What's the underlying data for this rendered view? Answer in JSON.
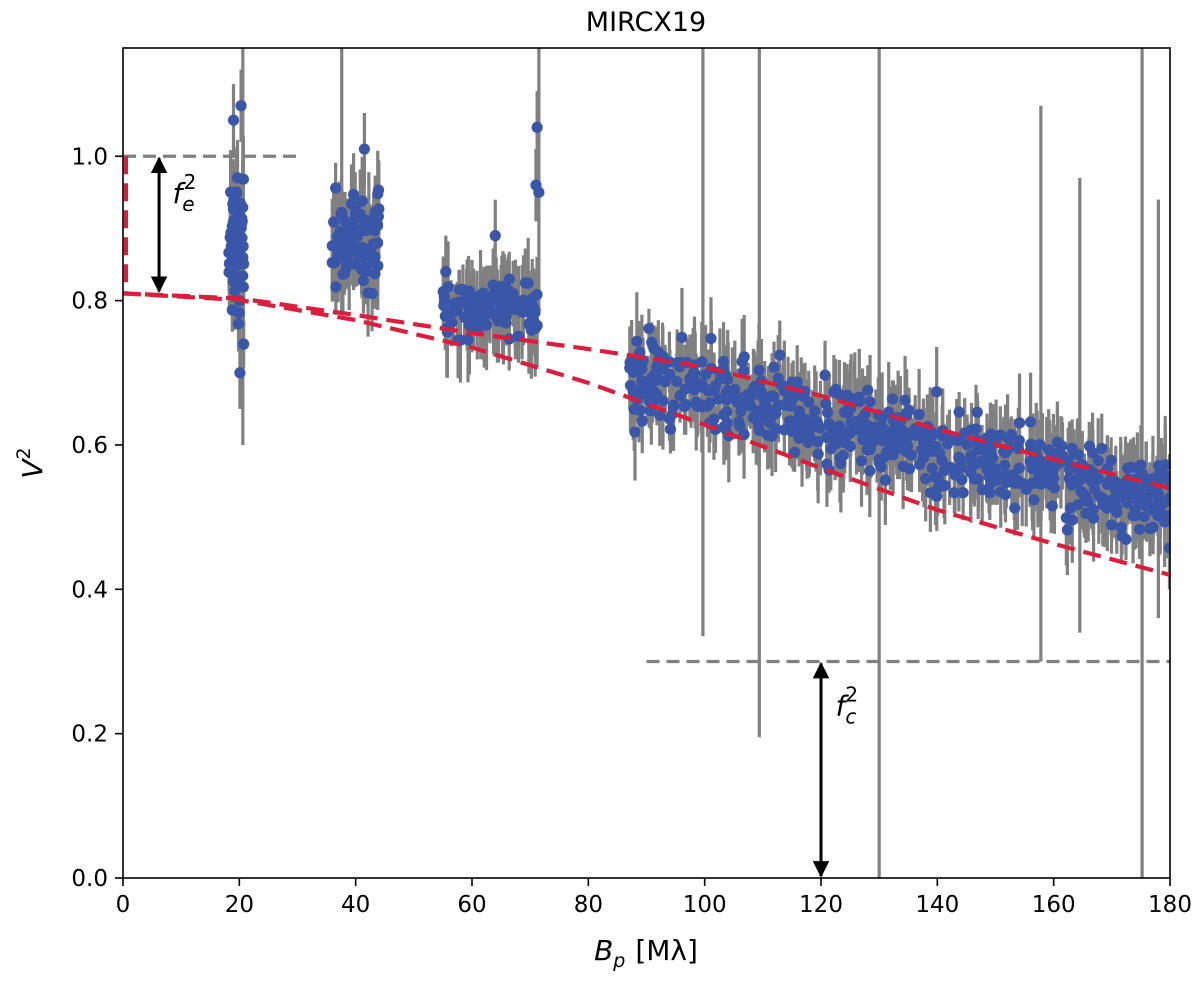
{
  "chart_data": {
    "type": "scatter",
    "title": "MIRCX19",
    "xlabel_main": "B",
    "xlabel_sub": "p",
    "xlabel_unit": "[Mλ]",
    "ylabel_main": "V",
    "ylabel_sup": "2",
    "xlim": [
      0,
      180
    ],
    "ylim": [
      0,
      1.15
    ],
    "xticks": [
      0,
      20,
      40,
      60,
      80,
      100,
      120,
      140,
      160,
      180
    ],
    "xtick_labels": [
      "0",
      "20",
      "40",
      "60",
      "80",
      "100",
      "120",
      "140",
      "160",
      "180"
    ],
    "yticks": [
      0,
      0.2,
      0.4,
      0.6,
      0.8,
      1.0
    ],
    "ytick_labels": [
      "0.0",
      "0.2",
      "0.4",
      "0.6",
      "0.8",
      "1.0"
    ],
    "grid": false,
    "colors": {
      "points": "#3a56a8",
      "errorbars": "#808080",
      "model": "#dc1e3c",
      "reference": "#808080",
      "arrows": "#000000"
    },
    "clusters": [
      {
        "x_range": [
          18.2,
          20.8
        ],
        "y_center": 0.88,
        "y_spread": 0.09,
        "count": 70
      },
      {
        "x_range": [
          35.8,
          44.0
        ],
        "y_center": 0.88,
        "y_spread": 0.06,
        "count": 95
      },
      {
        "x_range": [
          55.0,
          71.5
        ],
        "y_center": 0.79,
        "y_spread": 0.04,
        "count": 110
      },
      {
        "x_range": [
          87.0,
          180.0
        ],
        "y_center_start": 0.7,
        "y_center_end": 0.52,
        "y_spread": 0.055,
        "count": 620
      }
    ],
    "highlight_points": [
      {
        "x": 20.3,
        "y": 1.07
      },
      {
        "x": 19.0,
        "y": 1.05
      },
      {
        "x": 20.1,
        "y": 0.7
      },
      {
        "x": 41.5,
        "y": 1.01
      },
      {
        "x": 71.2,
        "y": 1.04
      },
      {
        "x": 71.0,
        "y": 0.96
      },
      {
        "x": 64.0,
        "y": 0.89
      },
      {
        "x": 55.5,
        "y": 0.84
      }
    ],
    "long_errorbars": [
      {
        "x": 99.7,
        "y": 0.68,
        "y_low": 0.335,
        "y_high": 1.15
      },
      {
        "x": 109.4,
        "y": 0.62,
        "y_low": 0.195,
        "y_high": 1.15
      },
      {
        "x": 130.0,
        "y": 0.58,
        "y_low": 0.0,
        "y_high": 1.15
      },
      {
        "x": 157.8,
        "y": 0.55,
        "y_low": 0.3,
        "y_high": 1.07
      },
      {
        "x": 175.2,
        "y": 0.56,
        "y_low": 0.0,
        "y_high": 1.15
      },
      {
        "x": 37.6,
        "y": 0.92,
        "y_low": 0.78,
        "y_high": 1.15
      },
      {
        "x": 20.6,
        "y": 0.86,
        "y_low": 0.6,
        "y_high": 1.15
      },
      {
        "x": 71.5,
        "y": 0.95,
        "y_low": 0.78,
        "y_high": 1.15
      },
      {
        "x": 164.5,
        "y": 0.56,
        "y_low": 0.34,
        "y_high": 0.97
      },
      {
        "x": 178.0,
        "y": 0.55,
        "y_low": 0.36,
        "y_high": 0.94
      }
    ],
    "model_curves": [
      {
        "name": "",
        "points": [
          [
            0.5,
            1.0
          ],
          [
            0.5,
            0.81
          ],
          [
            0,
            0.81
          ],
          [
            20,
            0.803
          ],
          [
            40,
            0.78
          ],
          [
            60,
            0.755
          ],
          [
            80,
            0.733
          ],
          [
            100,
            0.708
          ],
          [
            120,
            0.668
          ],
          [
            140,
            0.622
          ],
          [
            160,
            0.58
          ],
          [
            180,
            0.54
          ]
        ]
      },
      {
        "name": "",
        "points": [
          [
            0,
            0.81
          ],
          [
            20,
            0.801
          ],
          [
            40,
            0.773
          ],
          [
            60,
            0.735
          ],
          [
            80,
            0.686
          ],
          [
            100,
            0.628
          ],
          [
            120,
            0.568
          ],
          [
            140,
            0.51
          ],
          [
            160,
            0.463
          ],
          [
            180,
            0.42
          ]
        ]
      }
    ],
    "reference_lines": [
      {
        "y": 1.0,
        "x_start": 0,
        "x_end": 30
      },
      {
        "y": 0.3,
        "x_start": 90,
        "x_end": 180
      }
    ],
    "annotations": [
      {
        "label_main": "f",
        "label_sub": "e",
        "label_sup": "2",
        "x": 6.2,
        "y_from": 1.0,
        "y_to": 0.81,
        "label_x": 8.5,
        "label_y": 0.935
      },
      {
        "label_main": "f",
        "label_sub": "c",
        "label_sup": "2",
        "x": 120,
        "y_from": 0.3,
        "y_to": 0.0,
        "label_x": 122.5,
        "label_y": 0.225
      }
    ]
  }
}
